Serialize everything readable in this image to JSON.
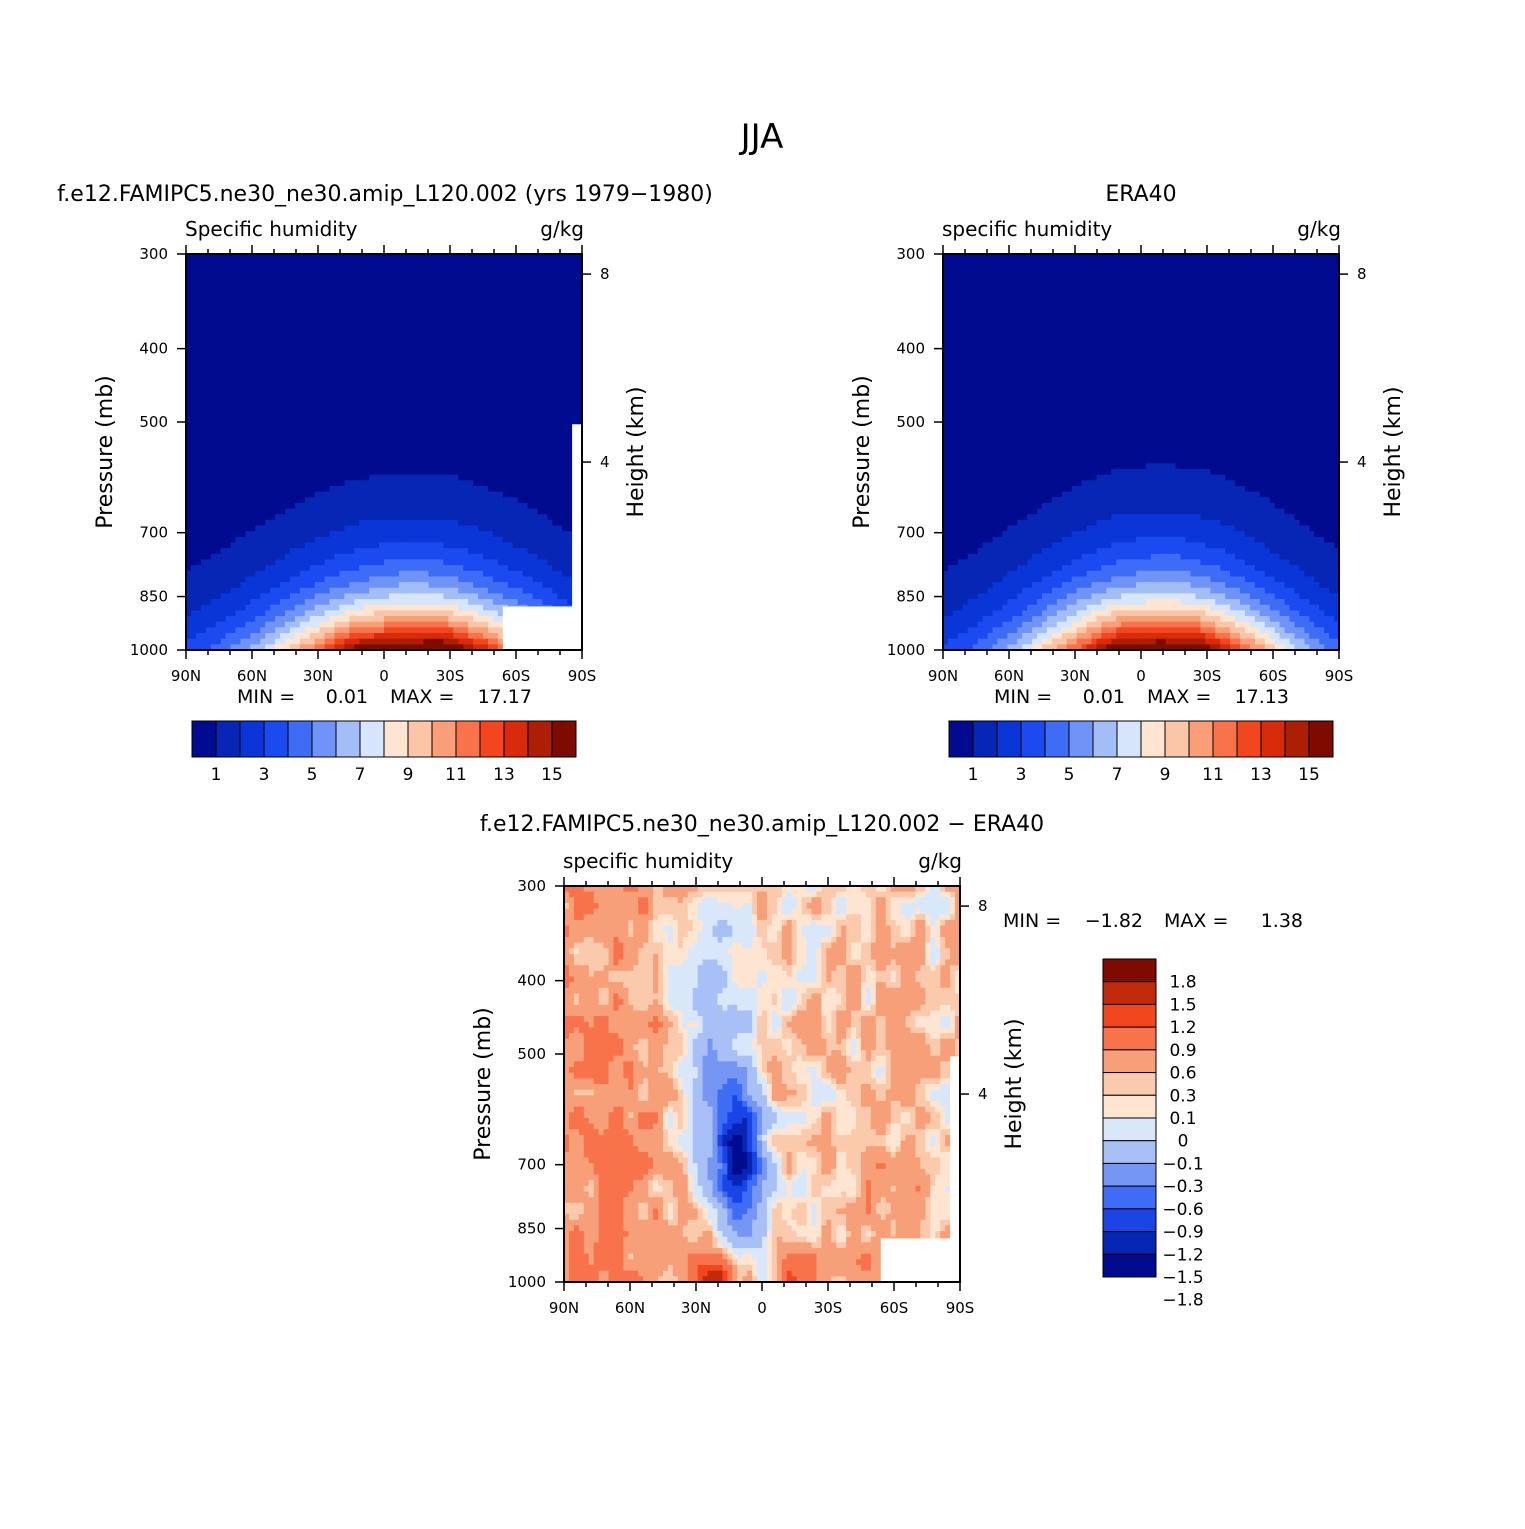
{
  "page_title": "JJA",
  "palettes": {
    "absolute": [
      "#000b8f",
      "#0726b5",
      "#0a36d8",
      "#1a4af0",
      "#3f6cf5",
      "#6f93f7",
      "#a3bdf6",
      "#d6e5fb",
      "#fde5d2",
      "#fbc6a8",
      "#f99e76",
      "#f8724b",
      "#f2461f",
      "#d92a0b",
      "#ad1f05",
      "#7e0b00"
    ],
    "difference": [
      "#000b8f",
      "#0726b5",
      "#1a44e6",
      "#3f6cf5",
      "#7596f3",
      "#a8c0f6",
      "#d9e7fb",
      "#fde5d2",
      "#fbc9ab",
      "#f79f78",
      "#f8724b",
      "#f1461e",
      "#c12a0b",
      "#7e0b00"
    ]
  },
  "chart_data": [
    {
      "id": "model",
      "type": "contour",
      "header": "f.e12.FAMIPC5.ne30_ne30.amip_L120.002 (yrs 1979−1980)",
      "title": "Specific humidity",
      "units": "g/kg",
      "ylabel": "Pressure (mb)",
      "y2label": "Height (km)",
      "x_ticks": [
        "90N",
        "60N",
        "30N",
        "0",
        "30S",
        "60S",
        "90S"
      ],
      "y_ticks": [
        "300",
        "400",
        "500",
        "700",
        "850",
        "1000"
      ],
      "y2_ticks": [
        "8",
        "4"
      ],
      "min_label": "MIN =",
      "min": "0.01",
      "max_label": "MAX =",
      "max": "17.17",
      "colorbar_labels": [
        "1",
        "3",
        "5",
        "7",
        "9",
        "11",
        "13",
        "15"
      ],
      "peak_lat_deg": -12,
      "profile": {
        "base": 13.3,
        "decay_lat": 45,
        "decay_height": 0.78
      }
    },
    {
      "id": "obs",
      "type": "contour",
      "header": "ERA40",
      "title": "specific humidity",
      "units": "g/kg",
      "ylabel": "Pressure (mb)",
      "y2label": "Height (km)",
      "x_ticks": [
        "90N",
        "60N",
        "30N",
        "0",
        "30S",
        "60S",
        "90S"
      ],
      "y_ticks": [
        "300",
        "400",
        "500",
        "700",
        "850",
        "1000"
      ],
      "y2_ticks": [
        "8",
        "4"
      ],
      "min_label": "MIN =",
      "min": "0.01",
      "max_label": "MAX =",
      "max": "17.13",
      "colorbar_labels": [
        "1",
        "3",
        "5",
        "7",
        "9",
        "11",
        "13",
        "15"
      ],
      "peak_lat_deg": -8,
      "profile": {
        "base": 13.3,
        "decay_lat": 42,
        "decay_height": 0.75
      }
    },
    {
      "id": "diff",
      "type": "contour",
      "header": "f.e12.FAMIPC5.ne30_ne30.amip_L120.002 − ERA40",
      "title": "specific humidity",
      "units": "g/kg",
      "ylabel": "Pressure (mb)",
      "y2label": "Height (km)",
      "x_ticks": [
        "90N",
        "60N",
        "30N",
        "0",
        "30S",
        "60S",
        "90S"
      ],
      "y_ticks": [
        "300",
        "400",
        "500",
        "700",
        "850",
        "1000"
      ],
      "y2_ticks": [
        "8",
        "4"
      ],
      "min_label": "MIN =",
      "min": "−1.82",
      "max_label": "MAX =",
      "max": "1.38",
      "levels": [
        -1.8,
        -1.5,
        -1.2,
        -0.9,
        -0.6,
        -0.3,
        -0.1,
        0,
        0.1,
        0.3,
        0.6,
        0.9,
        1.2,
        1.5,
        1.8
      ],
      "colorbar_labels": [
        "1.8",
        "1.5",
        "1.2",
        "0.9",
        "0.6",
        "0.3",
        "0.1",
        "0",
        "−0.1",
        "−0.3",
        "−0.6",
        "−0.9",
        "−1.2",
        "−1.5",
        "−1.8"
      ]
    }
  ]
}
